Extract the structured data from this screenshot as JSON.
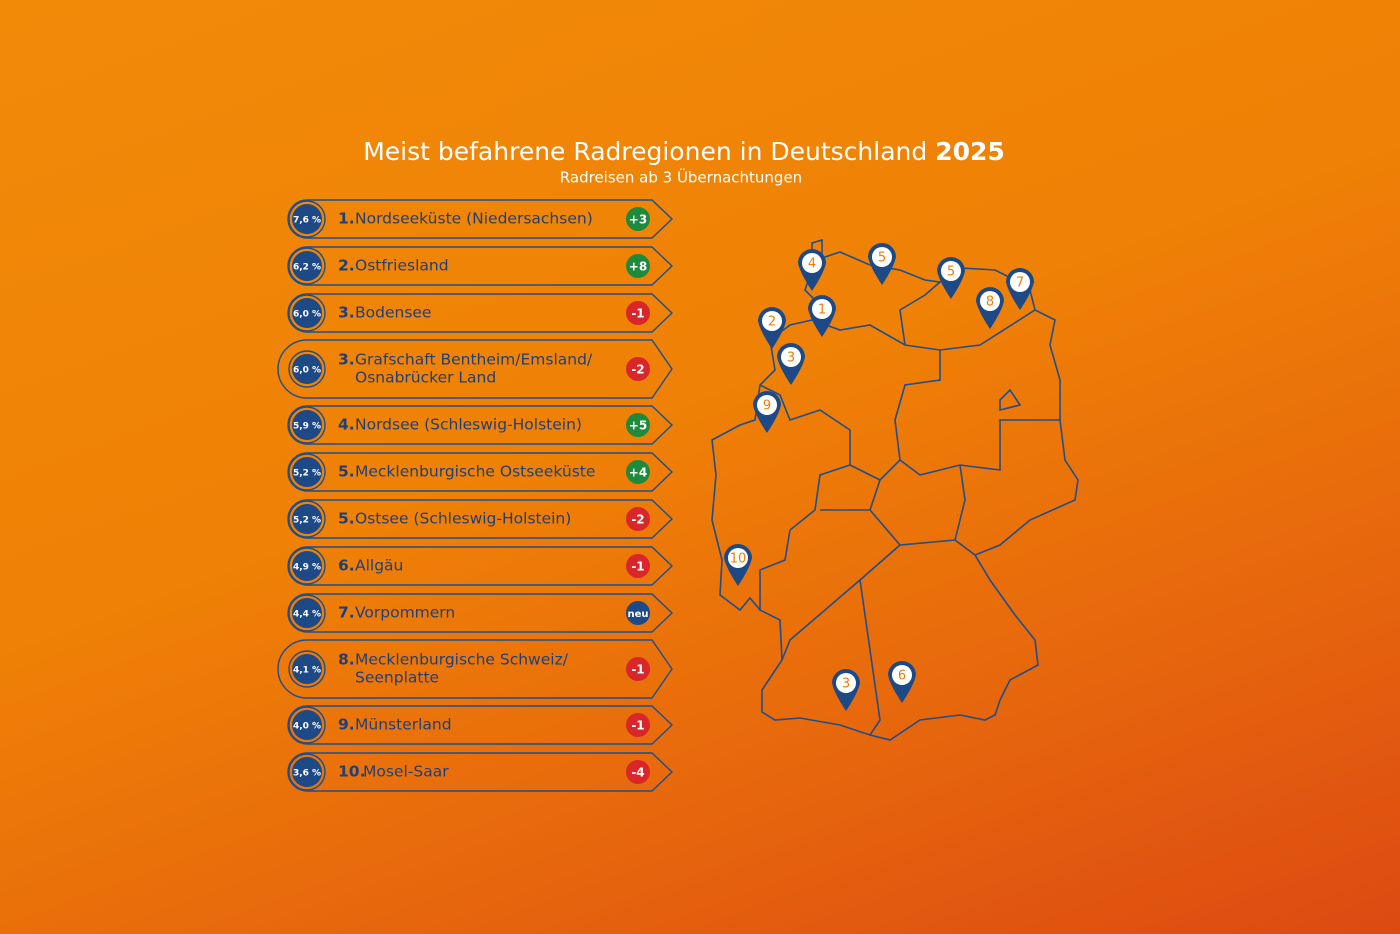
{
  "header": {
    "title": "Meist befahrene Radregionen in Deutschland",
    "year": "2025",
    "subtitle": "Radreisen ab 3 Übernachtungen"
  },
  "ranking": [
    {
      "share": "7,6 %",
      "rank": "1.",
      "name_lines": [
        "Nordseeküste (Niedersachsen)"
      ],
      "change": "+3",
      "change_color": "#1e8a3c"
    },
    {
      "share": "6,2 %",
      "rank": "2.",
      "name_lines": [
        "Ostfriesland"
      ],
      "change": "+8",
      "change_color": "#1e8a3c"
    },
    {
      "share": "6,0 %",
      "rank": "3.",
      "name_lines": [
        "Bodensee"
      ],
      "change": "-1",
      "change_color": "#d8262a"
    },
    {
      "share": "6,0 %",
      "rank": "3.",
      "name_lines": [
        "Grafschaft Bentheim/Emsland/",
        "Osnabrücker Land"
      ],
      "change": "-2",
      "change_color": "#d8262a"
    },
    {
      "share": "5,9 %",
      "rank": "4.",
      "name_lines": [
        "Nordsee (Schleswig-Holstein)"
      ],
      "change": "+5",
      "change_color": "#1e8a3c"
    },
    {
      "share": "5,2 %",
      "rank": "5.",
      "name_lines": [
        "Mecklenburgische Ostseeküste"
      ],
      "change": "+4",
      "change_color": "#1e8a3c"
    },
    {
      "share": "5,2 %",
      "rank": "5.",
      "name_lines": [
        "Ostsee (Schleswig-Holstein)"
      ],
      "change": "-2",
      "change_color": "#d8262a"
    },
    {
      "share": "4,9 %",
      "rank": "6.",
      "name_lines": [
        "Allgäu"
      ],
      "change": "-1",
      "change_color": "#d8262a"
    },
    {
      "share": "4,4 %",
      "rank": "7.",
      "name_lines": [
        "Vorpommern"
      ],
      "change": "neu",
      "change_color": "#1d4a86"
    },
    {
      "share": "4,1 %",
      "rank": "8.",
      "name_lines": [
        "Mecklenburgische Schweiz/",
        "Seenplatte"
      ],
      "change": "-1",
      "change_color": "#d8262a"
    },
    {
      "share": "4,0 %",
      "rank": "9.",
      "name_lines": [
        "Münsterland"
      ],
      "change": "-1",
      "change_color": "#d8262a"
    },
    {
      "share": "3,6 %",
      "rank": "10.",
      "name_lines": [
        "Mosel-Saar"
      ],
      "change": "-4",
      "change_color": "#d8262a"
    }
  ],
  "map": {
    "pins": [
      "4",
      "5",
      "5",
      "7",
      "8",
      "1",
      "2",
      "3",
      "9",
      "10",
      "3",
      "6"
    ]
  }
}
